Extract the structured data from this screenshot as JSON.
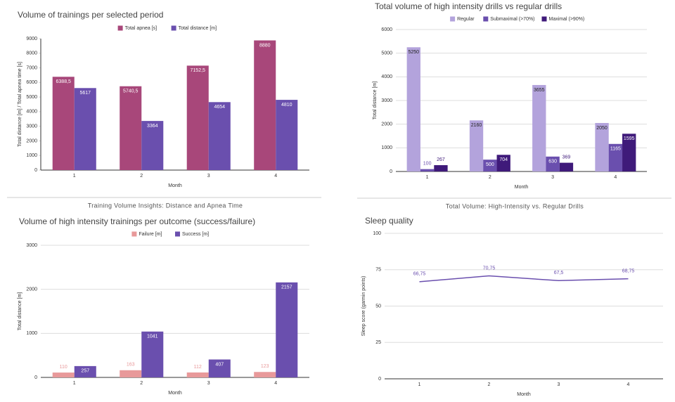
{
  "chart_data": [
    {
      "type": "bar",
      "title": "Volume of trainings per selected period",
      "caption": "Training Volume Insights: Distance and Apnea Time",
      "x_label": "Month",
      "y_label": "Total distance [m] / Total apnea time [s]",
      "categories": [
        "1",
        "2",
        "3",
        "4"
      ],
      "series": [
        {
          "name": "Total apnea [s]",
          "color": "#a8477a",
          "values": [
            6388.5,
            5740.5,
            7152.5,
            8880
          ],
          "value_labels": [
            "6388,5",
            "5740,5",
            "7152,5",
            "8880"
          ]
        },
        {
          "name": "Total distance [m]",
          "color": "#6a4fae",
          "values": [
            5617,
            3364,
            4654,
            4810
          ]
        }
      ],
      "ylim": [
        0,
        9000
      ],
      "yticks": [
        0,
        1000,
        2000,
        3000,
        4000,
        5000,
        6000,
        7000,
        8000,
        9000
      ],
      "grid": false,
      "legend": "top"
    },
    {
      "type": "bar",
      "title": "Total volume of high intensity drills vs regular drills",
      "caption": "Total Volume: High-Intensity vs. Regular Drills",
      "x_label": "Month",
      "y_label": "Total distance [m]",
      "categories": [
        "1",
        "2",
        "3",
        "4"
      ],
      "series": [
        {
          "name": "Regular",
          "color": "#b3a3dc",
          "values": [
            5250,
            2160,
            3655,
            2050
          ]
        },
        {
          "name": "Submaximal (>70%)",
          "color": "#6a4fae",
          "values": [
            100,
            500,
            630,
            1165
          ]
        },
        {
          "name": "Maximal (>90%)",
          "color": "#3f1a7a",
          "values": [
            267,
            704,
            369,
            1595
          ]
        }
      ],
      "ylim": [
        0,
        6000
      ],
      "yticks": [
        0,
        1000,
        2000,
        3000,
        4000,
        5000,
        6000
      ],
      "grid": true,
      "legend": "top"
    },
    {
      "type": "bar",
      "title": "Volume of high intensity trainings per outcome (success/failure)",
      "x_label": "Month",
      "y_label": "Total distance [m]",
      "categories": [
        "1",
        "2",
        "3",
        "4"
      ],
      "series": [
        {
          "name": "Failure [m]",
          "color": "#e8999a",
          "values": [
            110,
            163,
            112,
            123
          ]
        },
        {
          "name": "Success [m]",
          "color": "#6a4fae",
          "values": [
            257,
            1041,
            407,
            2157
          ]
        }
      ],
      "ylim": [
        0,
        3000
      ],
      "yticks": [
        0,
        1000,
        2000,
        3000
      ],
      "grid": true,
      "legend": "top"
    },
    {
      "type": "line",
      "title": "Sleep quality",
      "x_label": "Month",
      "y_label": "Sleep score (garmin points)",
      "categories": [
        "1",
        "2",
        "3",
        "4"
      ],
      "series": [
        {
          "name": "Sleep score",
          "color": "#6a4fae",
          "values": [
            66.75,
            70.75,
            67.5,
            68.75
          ],
          "value_labels": [
            "66,75",
            "70,75",
            "67,5",
            "68,75"
          ]
        }
      ],
      "ylim": [
        0,
        100
      ],
      "yticks": [
        0,
        25,
        50,
        75,
        100
      ],
      "grid": true,
      "legend": "none"
    }
  ]
}
